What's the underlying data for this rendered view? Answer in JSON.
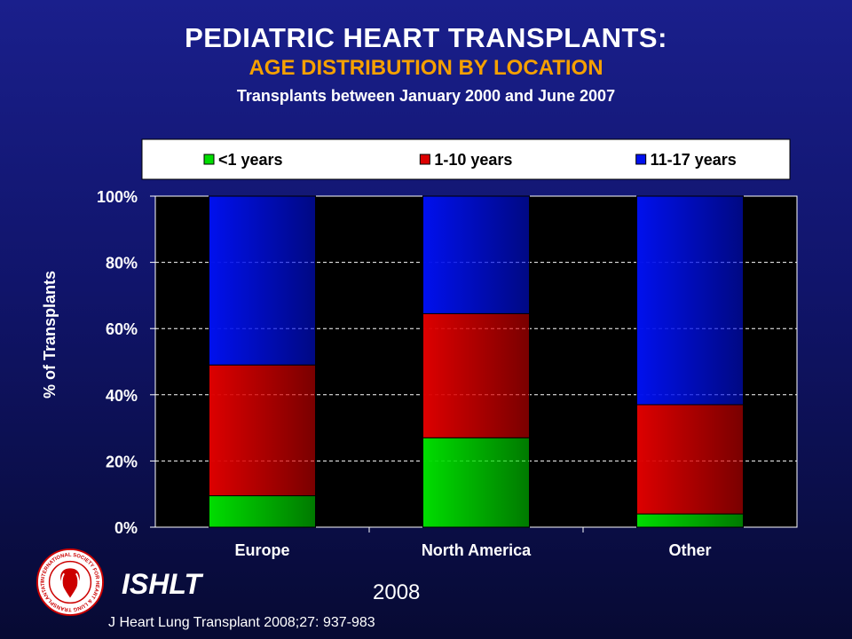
{
  "header": {
    "title": "PEDIATRIC HEART TRANSPLANTS:",
    "subtitle": "AGE DISTRIBUTION BY LOCATION",
    "subtitle2": "Transplants between January 2000 and June 2007"
  },
  "footer": {
    "org": "ISHLT",
    "year": "2008",
    "citation": "J Heart Lung Transplant 2008;27: 937-983"
  },
  "logo": {
    "ring_text": "INTERNATIONAL SOCIETY FOR HEART & LUNG TRANSPLANTATION"
  },
  "colors": {
    "green": "#00dd00",
    "red": "#dd0000",
    "blue": "#0010ee",
    "title": "#ffffff",
    "subtitle": "#f5a000"
  },
  "chart_data": {
    "type": "bar",
    "stacked": true,
    "categories": [
      "Europe",
      "North America",
      "Other"
    ],
    "series": [
      {
        "name": "<1 years",
        "color": "#00dd00",
        "values": [
          9.5,
          27,
          4
        ]
      },
      {
        "name": "1-10 years",
        "color": "#dd0000",
        "values": [
          39.5,
          37.5,
          33
        ]
      },
      {
        "name": "11-17 years",
        "color": "#0010ee",
        "values": [
          51,
          35.5,
          63
        ]
      }
    ],
    "ylabel": "% of Transplants",
    "xlabel": "",
    "ylim": [
      0,
      100
    ],
    "yticks": [
      "0%",
      "20%",
      "40%",
      "60%",
      "80%",
      "100%"
    ],
    "grid": true,
    "legend": "top"
  }
}
